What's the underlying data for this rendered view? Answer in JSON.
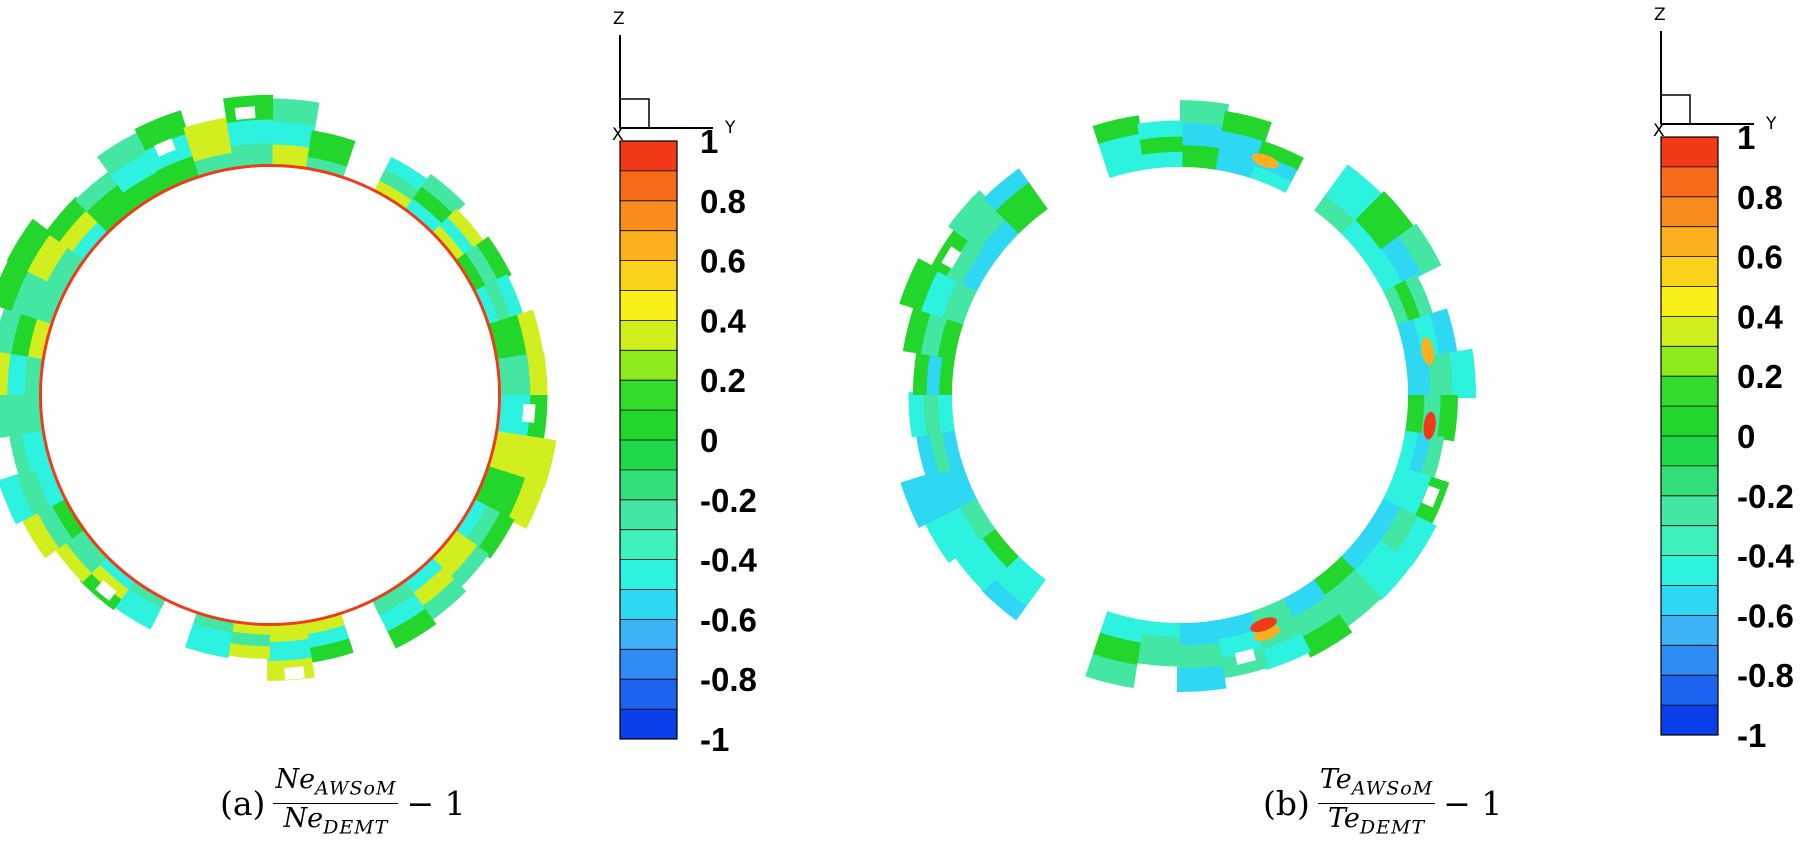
{
  "panels": [
    {
      "id": "a",
      "caption_tag": "(a)",
      "fraction": {
        "num_var": "Ne",
        "num_sub": "AWSoM",
        "den_var": "Ne",
        "den_sub": "DEMT"
      },
      "caption_tail": "− 1"
    },
    {
      "id": "b",
      "caption_tag": "(b)",
      "fraction": {
        "num_var": "Te",
        "num_sub": "AWSoM",
        "den_var": "Te",
        "den_sub": "DEMT"
      },
      "caption_tail": "− 1"
    }
  ],
  "axes_triad": {
    "vertical": "Z",
    "horizontal": "Y",
    "origin": "X"
  },
  "chart_data": [
    {
      "type": "heatmap",
      "title": "",
      "colorbar": {
        "range": [
          -1,
          1
        ],
        "ticks": [
          1,
          0.8,
          0.6,
          0.4,
          0.2,
          0,
          -0.2,
          -0.4,
          -0.6,
          -0.8,
          -1
        ],
        "tick_labels": [
          "1",
          "0.8",
          "0.6",
          "0.4",
          "0.2",
          "0",
          "-0.2",
          "-0.4",
          "-0.6",
          "-0.8",
          "-1"
        ],
        "levels": [
          "#0a3ee8",
          "#1e63f0",
          "#2f8cf5",
          "#3db2f7",
          "#2fd8f2",
          "#2ef2e0",
          "#3ef0bc",
          "#43e6a2",
          "#32e07a",
          "#1fd84a",
          "#22d62c",
          "#33dc2a",
          "#8eea1c",
          "#d2ee1e",
          "#f8f018",
          "#fad21c",
          "#fcb01e",
          "#f88c1c",
          "#f66a1a",
          "#f03a18"
        ]
      },
      "ring_dominant_values": [
        -0.5,
        -0.3,
        0.0,
        0.3
      ],
      "inner_edge_value": 1.0
    },
    {
      "type": "heatmap",
      "title": "",
      "colorbar": {
        "range": [
          -1,
          1
        ],
        "ticks": [
          1,
          0.8,
          0.6,
          0.4,
          0.2,
          0,
          -0.2,
          -0.4,
          -0.6,
          -0.8,
          -1
        ],
        "tick_labels": [
          "1",
          "0.8",
          "0.6",
          "0.4",
          "0.2",
          "0",
          "-0.2",
          "-0.4",
          "-0.6",
          "-0.8",
          "-1"
        ],
        "levels": [
          "#0a3ee8",
          "#1e63f0",
          "#2f8cf5",
          "#3db2f7",
          "#2fd8f2",
          "#2ef2e0",
          "#3ef0bc",
          "#43e6a2",
          "#32e07a",
          "#1fd84a",
          "#22d62c",
          "#33dc2a",
          "#8eea1c",
          "#d2ee1e",
          "#f8f018",
          "#fad21c",
          "#fcb01e",
          "#f88c1c",
          "#f66a1a",
          "#f03a18"
        ]
      },
      "ring_dominant_values": [
        -0.6,
        -0.5,
        -0.3,
        0.0
      ],
      "hotspot_values": [
        0.6,
        1.0
      ]
    }
  ]
}
